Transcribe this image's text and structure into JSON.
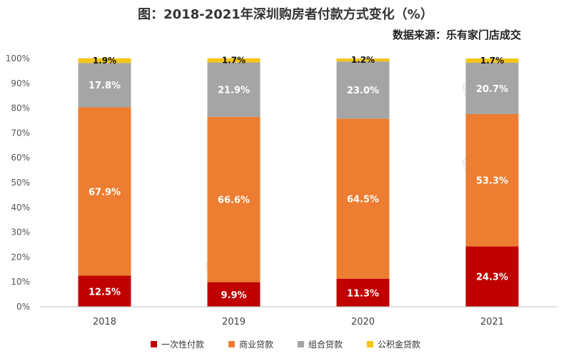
{
  "header": {
    "title": "图：2018-2021年深圳购房者付款方式变化（%）",
    "source": "数据来源：乐有家门店成交"
  },
  "watermark": {
    "text": "乐有家"
  },
  "chart_data": {
    "type": "bar",
    "stacked": true,
    "categories": [
      "2018",
      "2019",
      "2020",
      "2021"
    ],
    "series": [
      {
        "name": "一次性付款",
        "color": "#C00000",
        "values": [
          12.5,
          9.9,
          11.3,
          24.3
        ],
        "labels": [
          "12.5%",
          "9.9%",
          "11.3%",
          "24.3%"
        ]
      },
      {
        "name": "商业贷款",
        "color": "#ED7D31",
        "values": [
          67.9,
          66.6,
          64.5,
          53.3
        ],
        "labels": [
          "67.9%",
          "66.6%",
          "64.5%",
          "53.3%"
        ]
      },
      {
        "name": "组合贷款",
        "color": "#A5A5A5",
        "values": [
          17.8,
          21.9,
          23.0,
          20.7
        ],
        "labels": [
          "17.8%",
          "21.9%",
          "23.0%",
          "20.7%"
        ]
      },
      {
        "name": "公积金贷款",
        "color": "#F5C518",
        "values": [
          1.9,
          1.7,
          1.2,
          1.7
        ],
        "labels": [
          "1.9%",
          "1.7%",
          "1.2%",
          "1.7%"
        ]
      }
    ],
    "ylim": [
      0,
      100
    ],
    "yticks": [
      "0%",
      "10%",
      "20%",
      "30%",
      "40%",
      "50%",
      "60%",
      "70%",
      "80%",
      "90%",
      "100%"
    ],
    "legend_position": "bottom",
    "grid": false
  }
}
